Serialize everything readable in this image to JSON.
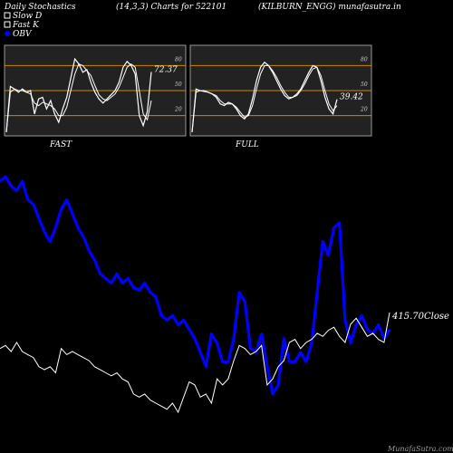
{
  "header": {
    "title_left": "Daily Stochastics",
    "title_mid": "(14,3,3) Charts for 522101",
    "title_right": "(KILBURN_ENGG) munafasutra.in",
    "legend": [
      {
        "label": "Slow  D",
        "color": "#ffffff",
        "marker": "hollow-square"
      },
      {
        "label": "Fast K",
        "color": "#ffffff",
        "marker": "hollow-square"
      },
      {
        "label": "OBV",
        "color": "#0000ff",
        "marker": "filled-circle"
      }
    ]
  },
  "footer": {
    "credit": "MunafaSutra.com"
  },
  "colors": {
    "background": "#000000",
    "panel_bg": "#222222",
    "level_line": "#cc8800",
    "stoch_line": "#ffffff",
    "obv_line": "#0000ff",
    "price_line": "#ffffff"
  },
  "chart_data": [
    {
      "type": "line",
      "panel": "FAST",
      "label": "FAST",
      "ylim": [
        0,
        100
      ],
      "levels": [
        20,
        50,
        80
      ],
      "tick_labels": [
        "80",
        "50",
        "20"
      ],
      "last_value_label": "72.37",
      "series": [
        {
          "name": "Fast K",
          "values": [
            0,
            55,
            52,
            48,
            52,
            48,
            50,
            22,
            40,
            42,
            28,
            38,
            22,
            12,
            28,
            42,
            65,
            88,
            82,
            72,
            75,
            60,
            48,
            40,
            35,
            40,
            45,
            50,
            60,
            78,
            85,
            80,
            70,
            20,
            8,
            25,
            72.37
          ]
        },
        {
          "name": "Slow D",
          "values": [
            0,
            48,
            52,
            50,
            50,
            48,
            46,
            35,
            32,
            36,
            34,
            32,
            28,
            20,
            20,
            30,
            50,
            70,
            82,
            80,
            74,
            68,
            56,
            45,
            40,
            38,
            42,
            46,
            54,
            66,
            78,
            82,
            78,
            50,
            22,
            15,
            38
          ]
        }
      ]
    },
    {
      "type": "line",
      "panel": "FULL",
      "label": "FULL",
      "ylim": [
        0,
        100
      ],
      "levels": [
        20,
        50,
        80
      ],
      "tick_labels": [
        "80",
        "50",
        "20"
      ],
      "last_value_label": "39.42",
      "series": [
        {
          "name": "Fast K",
          "values": [
            0,
            52,
            50,
            49,
            48,
            46,
            42,
            34,
            32,
            36,
            34,
            28,
            20,
            16,
            22,
            40,
            62,
            78,
            84,
            80,
            72,
            62,
            52,
            44,
            40,
            42,
            46,
            52,
            62,
            72,
            80,
            78,
            62,
            42,
            28,
            22,
            39.42
          ]
        },
        {
          "name": "Slow D",
          "values": [
            0,
            48,
            50,
            50,
            48,
            46,
            44,
            38,
            34,
            34,
            34,
            30,
            24,
            18,
            20,
            32,
            52,
            70,
            80,
            80,
            74,
            66,
            56,
            48,
            42,
            42,
            44,
            50,
            58,
            68,
            76,
            78,
            68,
            50,
            34,
            26,
            32
          ]
        }
      ]
    },
    {
      "type": "line",
      "panel": "OBV",
      "close_label": "415.70Close",
      "x": [
        0,
        1,
        2,
        3,
        4,
        5,
        6,
        7,
        8,
        9,
        10,
        11,
        12,
        13,
        14,
        15,
        16,
        17,
        18,
        19,
        20,
        21,
        22,
        23,
        24,
        25,
        26,
        27,
        28,
        29,
        30,
        31,
        32,
        33,
        34,
        35,
        36,
        37,
        38,
        39,
        40,
        41,
        42,
        43,
        44,
        45,
        46,
        47,
        48,
        49,
        50,
        51,
        52,
        53,
        54,
        55,
        56,
        57,
        58,
        59,
        60,
        61,
        62,
        63,
        64,
        65,
        66,
        67,
        68,
        69,
        70
      ],
      "series": [
        {
          "name": "OBV",
          "values": [
            80,
            82,
            78,
            76,
            80,
            72,
            70,
            64,
            58,
            54,
            60,
            68,
            72,
            66,
            60,
            56,
            50,
            46,
            40,
            38,
            36,
            40,
            36,
            38,
            34,
            33,
            36,
            32,
            30,
            22,
            20,
            22,
            18,
            20,
            16,
            12,
            6,
            0,
            14,
            10,
            2,
            2,
            12,
            32,
            28,
            8,
            6,
            14,
            0,
            -12,
            -8,
            12,
            2,
            2,
            6,
            2,
            10,
            32,
            54,
            48,
            60,
            62,
            20,
            10,
            18,
            22,
            16,
            14,
            18,
            12,
            16
          ]
        },
        {
          "name": "Close",
          "values": [
            392,
            394,
            390,
            396,
            390,
            388,
            386,
            380,
            378,
            380,
            376,
            392,
            388,
            390,
            388,
            386,
            384,
            380,
            378,
            376,
            374,
            376,
            372,
            370,
            362,
            360,
            362,
            358,
            356,
            354,
            352,
            356,
            350,
            360,
            370,
            368,
            360,
            362,
            356,
            372,
            368,
            372,
            384,
            394,
            392,
            388,
            390,
            394,
            368,
            372,
            380,
            384,
            396,
            398,
            392,
            396,
            398,
            402,
            400,
            404,
            406,
            400,
            396,
            408,
            412,
            406,
            400,
            402,
            398,
            396,
            415.7
          ]
        }
      ]
    }
  ]
}
